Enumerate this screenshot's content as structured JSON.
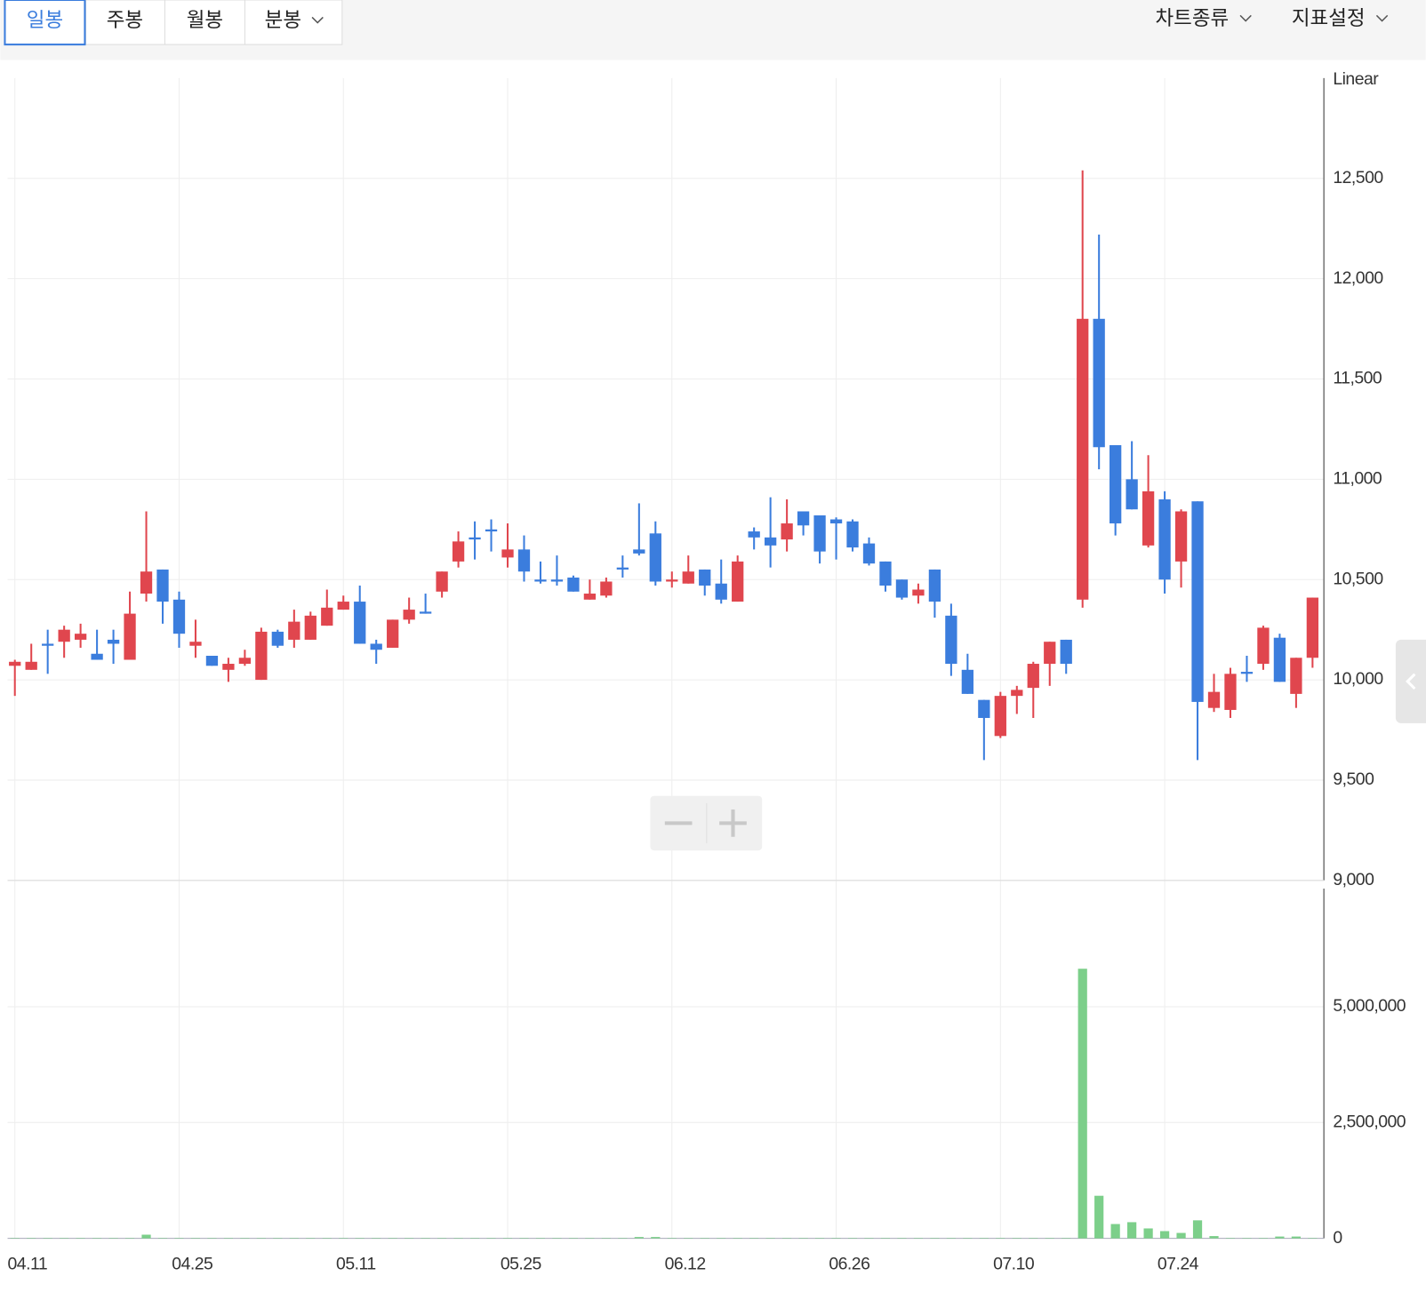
{
  "toolbar": {
    "tabs": [
      "일봉",
      "주봉",
      "월봉",
      "분봉"
    ],
    "menus": [
      "차트종류",
      "지표설정"
    ]
  },
  "chart_data": [
    {
      "type": "candlestick",
      "scale_label": "Linear",
      "categories": [
        "04.11",
        null,
        null,
        null,
        null,
        null,
        null,
        null,
        null,
        null,
        "04.25",
        null,
        null,
        null,
        null,
        null,
        null,
        null,
        null,
        null,
        "05.11",
        null,
        null,
        null,
        null,
        null,
        null,
        null,
        null,
        null,
        "05.25",
        null,
        null,
        null,
        null,
        null,
        null,
        null,
        null,
        null,
        "06.12",
        null,
        null,
        null,
        null,
        null,
        null,
        null,
        null,
        null,
        "06.26",
        null,
        null,
        null,
        null,
        null,
        null,
        null,
        null,
        null,
        "07.10",
        null,
        null,
        null,
        null,
        null,
        null,
        null,
        null,
        null,
        "07.24",
        null,
        null,
        null,
        null,
        null,
        null,
        null,
        null,
        null
      ],
      "open": [
        10070,
        10050,
        10180,
        10190,
        10200,
        10130,
        10200,
        10100,
        10430,
        10550,
        10400,
        10170,
        10120,
        10050,
        10080,
        10000,
        10240,
        10200,
        10200,
        10270,
        10350,
        10390,
        10180,
        10160,
        10300,
        10340,
        10440,
        10590,
        10710,
        10750,
        10610,
        10650,
        10500,
        10500,
        10510,
        10400,
        10420,
        10560,
        10650,
        10730,
        10490,
        10480,
        10550,
        10480,
        10390,
        10740,
        10710,
        10700,
        10840,
        10820,
        10800,
        10790,
        10680,
        10590,
        10500,
        10420,
        10550,
        10320,
        10050,
        9900,
        9720,
        9920,
        9960,
        10080,
        10200,
        10400,
        11800,
        11170,
        11000,
        10670,
        10900,
        10590,
        10890,
        9860,
        9850,
        10040,
        10080,
        10210,
        9930,
        10110
      ],
      "high": [
        10100,
        10180,
        10250,
        10270,
        10280,
        10250,
        10250,
        10440,
        10840,
        10550,
        10440,
        10300,
        10120,
        10110,
        10150,
        10260,
        10250,
        10350,
        10340,
        10450,
        10420,
        10470,
        10200,
        10300,
        10410,
        10430,
        10540,
        10740,
        10790,
        10800,
        10780,
        10720,
        10590,
        10620,
        10520,
        10500,
        10510,
        10620,
        10880,
        10790,
        10540,
        10620,
        10550,
        10600,
        10620,
        10760,
        10910,
        10900,
        10840,
        10820,
        10810,
        10800,
        10710,
        10590,
        10500,
        10480,
        10550,
        10380,
        10130,
        9900,
        9940,
        9970,
        10090,
        10190,
        10200,
        12540,
        12220,
        11170,
        11190,
        11120,
        10940,
        10850,
        10890,
        10030,
        10060,
        10120,
        10270,
        10230,
        10110,
        10410
      ],
      "low": [
        9920,
        10050,
        10030,
        10110,
        10160,
        10100,
        10080,
        10100,
        10390,
        10280,
        10160,
        10110,
        10070,
        9990,
        10070,
        10000,
        10160,
        10160,
        10200,
        10270,
        10350,
        10180,
        10080,
        10160,
        10280,
        10330,
        10410,
        10560,
        10600,
        10640,
        10560,
        10490,
        10480,
        10470,
        10440,
        10400,
        10410,
        10510,
        10620,
        10470,
        10460,
        10480,
        10420,
        10380,
        10390,
        10650,
        10560,
        10640,
        10720,
        10580,
        10600,
        10640,
        10570,
        10440,
        10400,
        10380,
        10310,
        10020,
        9930,
        9600,
        9710,
        9830,
        9810,
        9970,
        10030,
        10360,
        11050,
        10720,
        10850,
        10660,
        10430,
        10460,
        9600,
        9840,
        9810,
        9990,
        10050,
        9990,
        9860,
        10060
      ],
      "close": [
        10090,
        10090,
        10170,
        10250,
        10230,
        10100,
        10180,
        10330,
        10540,
        10390,
        10230,
        10190,
        10070,
        10080,
        10110,
        10240,
        10170,
        10290,
        10320,
        10360,
        10390,
        10180,
        10150,
        10300,
        10350,
        10330,
        10540,
        10690,
        10700,
        10740,
        10650,
        10540,
        10490,
        10490,
        10440,
        10430,
        10490,
        10550,
        10630,
        10490,
        10500,
        10540,
        10470,
        10400,
        10590,
        10710,
        10670,
        10780,
        10770,
        10640,
        10780,
        10660,
        10580,
        10470,
        10410,
        10450,
        10390,
        10080,
        9930,
        9810,
        9920,
        9950,
        10080,
        10190,
        10080,
        11800,
        11160,
        10780,
        10850,
        10940,
        10500,
        10840,
        9890,
        9940,
        10030,
        10030,
        10260,
        9990,
        10110,
        10410
      ],
      "up_color": "#e0464e",
      "down_color": "#3b7ddd",
      "ylim": [
        9000,
        13000
      ],
      "yticks": [
        {
          "value": 9000,
          "label": "9,000"
        },
        {
          "value": 9500,
          "label": "9,500"
        },
        {
          "value": 10000,
          "label": "10,000"
        },
        {
          "value": 10500,
          "label": "10,500"
        },
        {
          "value": 11000,
          "label": "11,000"
        },
        {
          "value": 11500,
          "label": "11,500"
        },
        {
          "value": 12000,
          "label": "12,000"
        },
        {
          "value": 12500,
          "label": "12,500"
        }
      ],
      "grid": true
    },
    {
      "type": "bar",
      "color": "#7ccf8a",
      "values": [
        10000,
        10000,
        10000,
        10000,
        10000,
        10000,
        10000,
        10000,
        80000,
        10000,
        10000,
        10000,
        10000,
        10000,
        10000,
        10000,
        10000,
        10000,
        10000,
        10000,
        10000,
        10000,
        10000,
        10000,
        10000,
        10000,
        10000,
        10000,
        10000,
        10000,
        10000,
        10000,
        10000,
        10000,
        10000,
        10000,
        10000,
        10000,
        30000,
        30000,
        10000,
        10000,
        10000,
        10000,
        10000,
        10000,
        10000,
        10000,
        10000,
        10000,
        10000,
        10000,
        10000,
        10000,
        10000,
        10000,
        10000,
        10000,
        10000,
        10000,
        10000,
        10000,
        10000,
        10000,
        10000,
        5820000,
        920000,
        310000,
        350000,
        215000,
        157000,
        118000,
        390000,
        50000,
        10000,
        10000,
        10000,
        40000,
        40000,
        10000
      ],
      "ylim": [
        0,
        7550000
      ],
      "yticks": [
        0,
        {
          "value": 2500000,
          "label": "2,500,000"
        },
        {
          "value": 5000000,
          "label": "5,000,000"
        }
      ],
      "grid": true
    }
  ]
}
